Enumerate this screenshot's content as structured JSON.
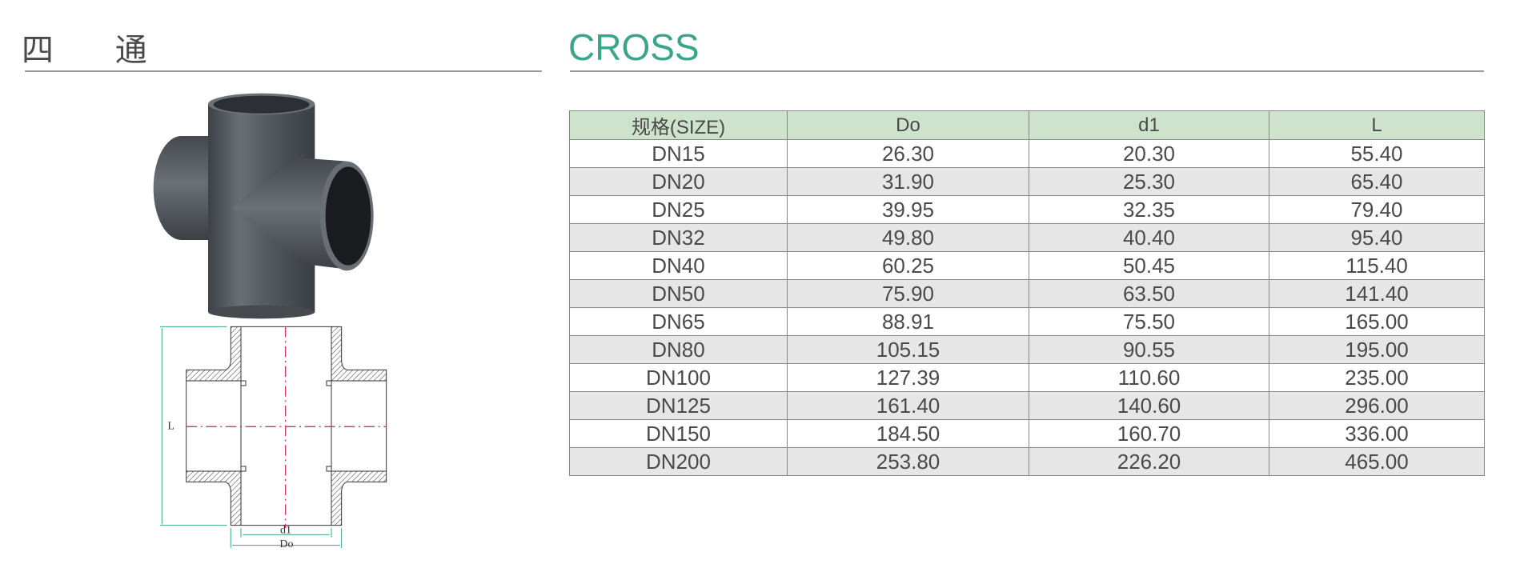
{
  "header": {
    "title_cn": "四 通",
    "title_en": "CROSS",
    "accent_color": "#3aa58a"
  },
  "drawing": {
    "label_L": "L",
    "label_d1": "d1",
    "label_Do": "Do"
  },
  "table": {
    "columns": [
      "规格(SIZE)",
      "Do",
      "d1",
      "L"
    ],
    "rows": [
      [
        "DN15",
        "26.30",
        "20.30",
        "55.40"
      ],
      [
        "DN20",
        "31.90",
        "25.30",
        "65.40"
      ],
      [
        "DN25",
        "39.95",
        "32.35",
        "79.40"
      ],
      [
        "DN32",
        "49.80",
        "40.40",
        "95.40"
      ],
      [
        "DN40",
        "60.25",
        "50.45",
        "115.40"
      ],
      [
        "DN50",
        "75.90",
        "63.50",
        "141.40"
      ],
      [
        "DN65",
        "88.91",
        "75.50",
        "165.00"
      ],
      [
        "DN80",
        "105.15",
        "90.55",
        "195.00"
      ],
      [
        "DN100",
        "127.39",
        "110.60",
        "235.00"
      ],
      [
        "DN125",
        "161.40",
        "140.60",
        "296.00"
      ],
      [
        "DN150",
        "184.50",
        "160.70",
        "336.00"
      ],
      [
        "DN200",
        "253.80",
        "226.20",
        "465.00"
      ]
    ],
    "header_color": "#cde3cc",
    "alt_row_color": "#e6e6e6"
  }
}
